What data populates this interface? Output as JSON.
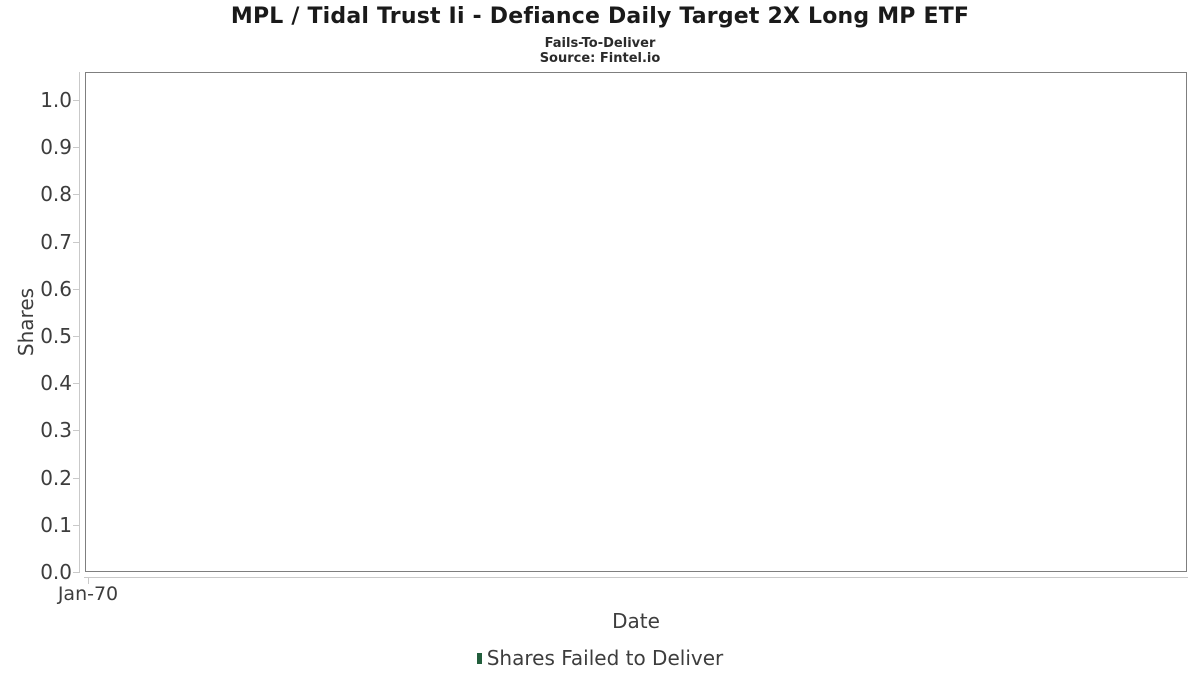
{
  "header": {
    "title": "MPL / Tidal Trust Ii - Defiance Daily Target 2X Long MP ETF",
    "subtitle": "Fails-To-Deliver",
    "source": "Source: Fintel.io"
  },
  "colors": {
    "plot_border": "#7f7f7f",
    "gridline": "#e6e6e6",
    "axis_line": "#c9c9c9",
    "text": "#3d3d3d",
    "title_text": "#1a1a1a",
    "legend_marker": "#225e3c"
  },
  "chart_data": {
    "type": "bar",
    "title": "MPL / Tidal Trust Ii - Defiance Daily Target 2X Long MP ETF",
    "subtitle": "Fails-To-Deliver",
    "source": "Source: Fintel.io",
    "xlabel": "Date",
    "ylabel": "Shares",
    "x_tick_labels": [
      "Jan-70"
    ],
    "y_tick_labels": [
      "1.0",
      "0.9",
      "0.8",
      "0.7",
      "0.6",
      "0.5",
      "0.4",
      "0.3",
      "0.2",
      "0.1",
      "0.0"
    ],
    "ylim": [
      0.0,
      1.0
    ],
    "xlim_note": "",
    "grid": "horizontal",
    "legend_position": "bottom-center",
    "series": [
      {
        "name": "Shares Failed to Deliver",
        "color": "#225e3c",
        "values": []
      }
    ]
  },
  "legend": {
    "label": "Shares Failed to Deliver",
    "marker_color": "#225e3c"
  }
}
